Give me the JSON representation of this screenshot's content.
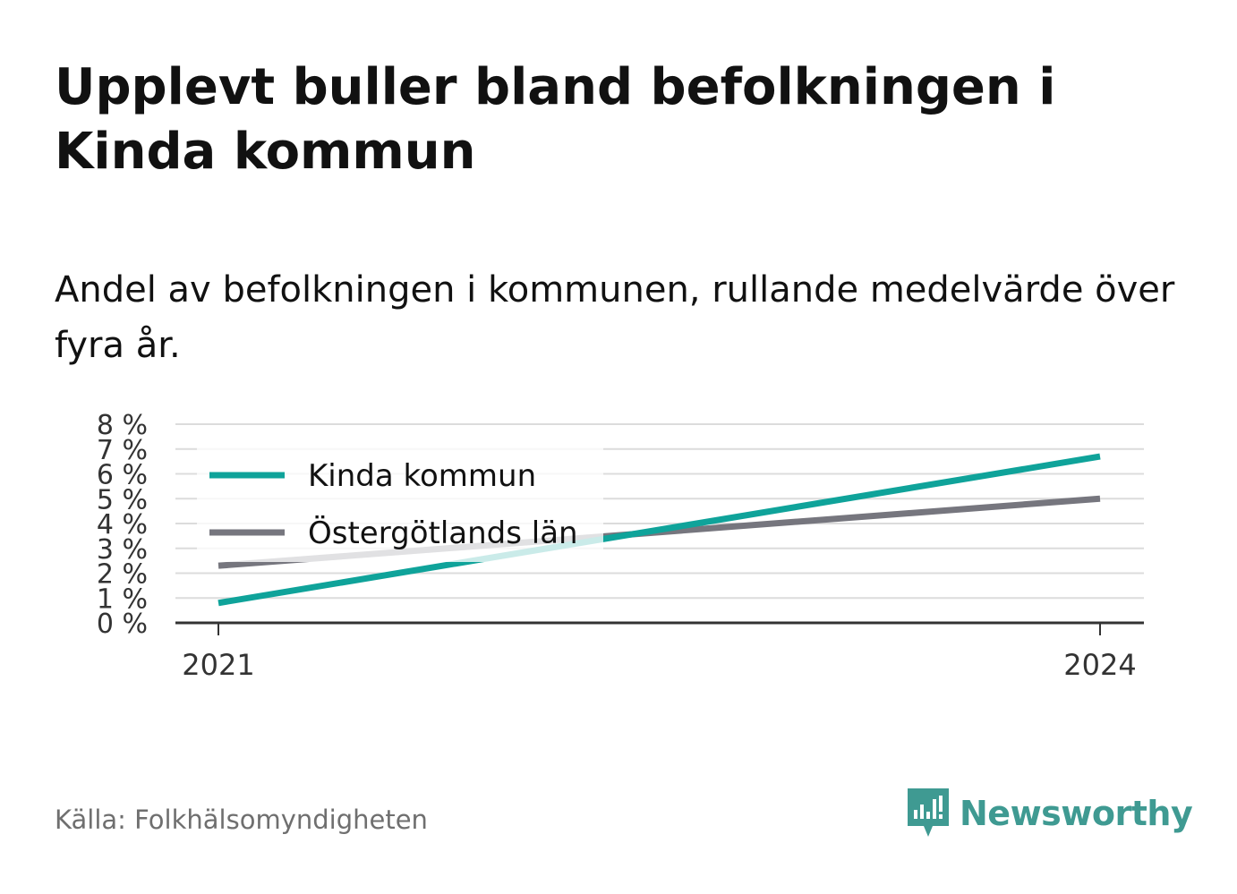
{
  "title": "Upplevt buller bland befolkningen i Kinda kommun",
  "subtitle": "Andel av befolkningen i kommunen, rullande medelvärde över fyra år.",
  "source": "Källa: Folkhälsomyndigheten",
  "brand": {
    "name": "Newsworthy",
    "icon": "newsworthy-logo-icon",
    "color": "#3f9a92"
  },
  "chart_data": {
    "type": "line",
    "x": [
      2021,
      2024
    ],
    "x_tick_labels": [
      "2021",
      "2024"
    ],
    "ylim": [
      0,
      8
    ],
    "y_ticks": [
      0,
      1,
      2,
      3,
      4,
      5,
      6,
      7,
      8
    ],
    "y_tick_labels": [
      "0 %",
      "1 %",
      "2 %",
      "3 %",
      "4 %",
      "5 %",
      "6 %",
      "7 %",
      "8 %"
    ],
    "grid": true,
    "legend_position": "top-left",
    "series": [
      {
        "name": "Kinda kommun",
        "values": [
          0.8,
          6.7
        ],
        "color": "#0fa39a"
      },
      {
        "name": "Östergötlands län",
        "values": [
          2.3,
          5.0
        ],
        "color": "#76767e"
      }
    ]
  }
}
